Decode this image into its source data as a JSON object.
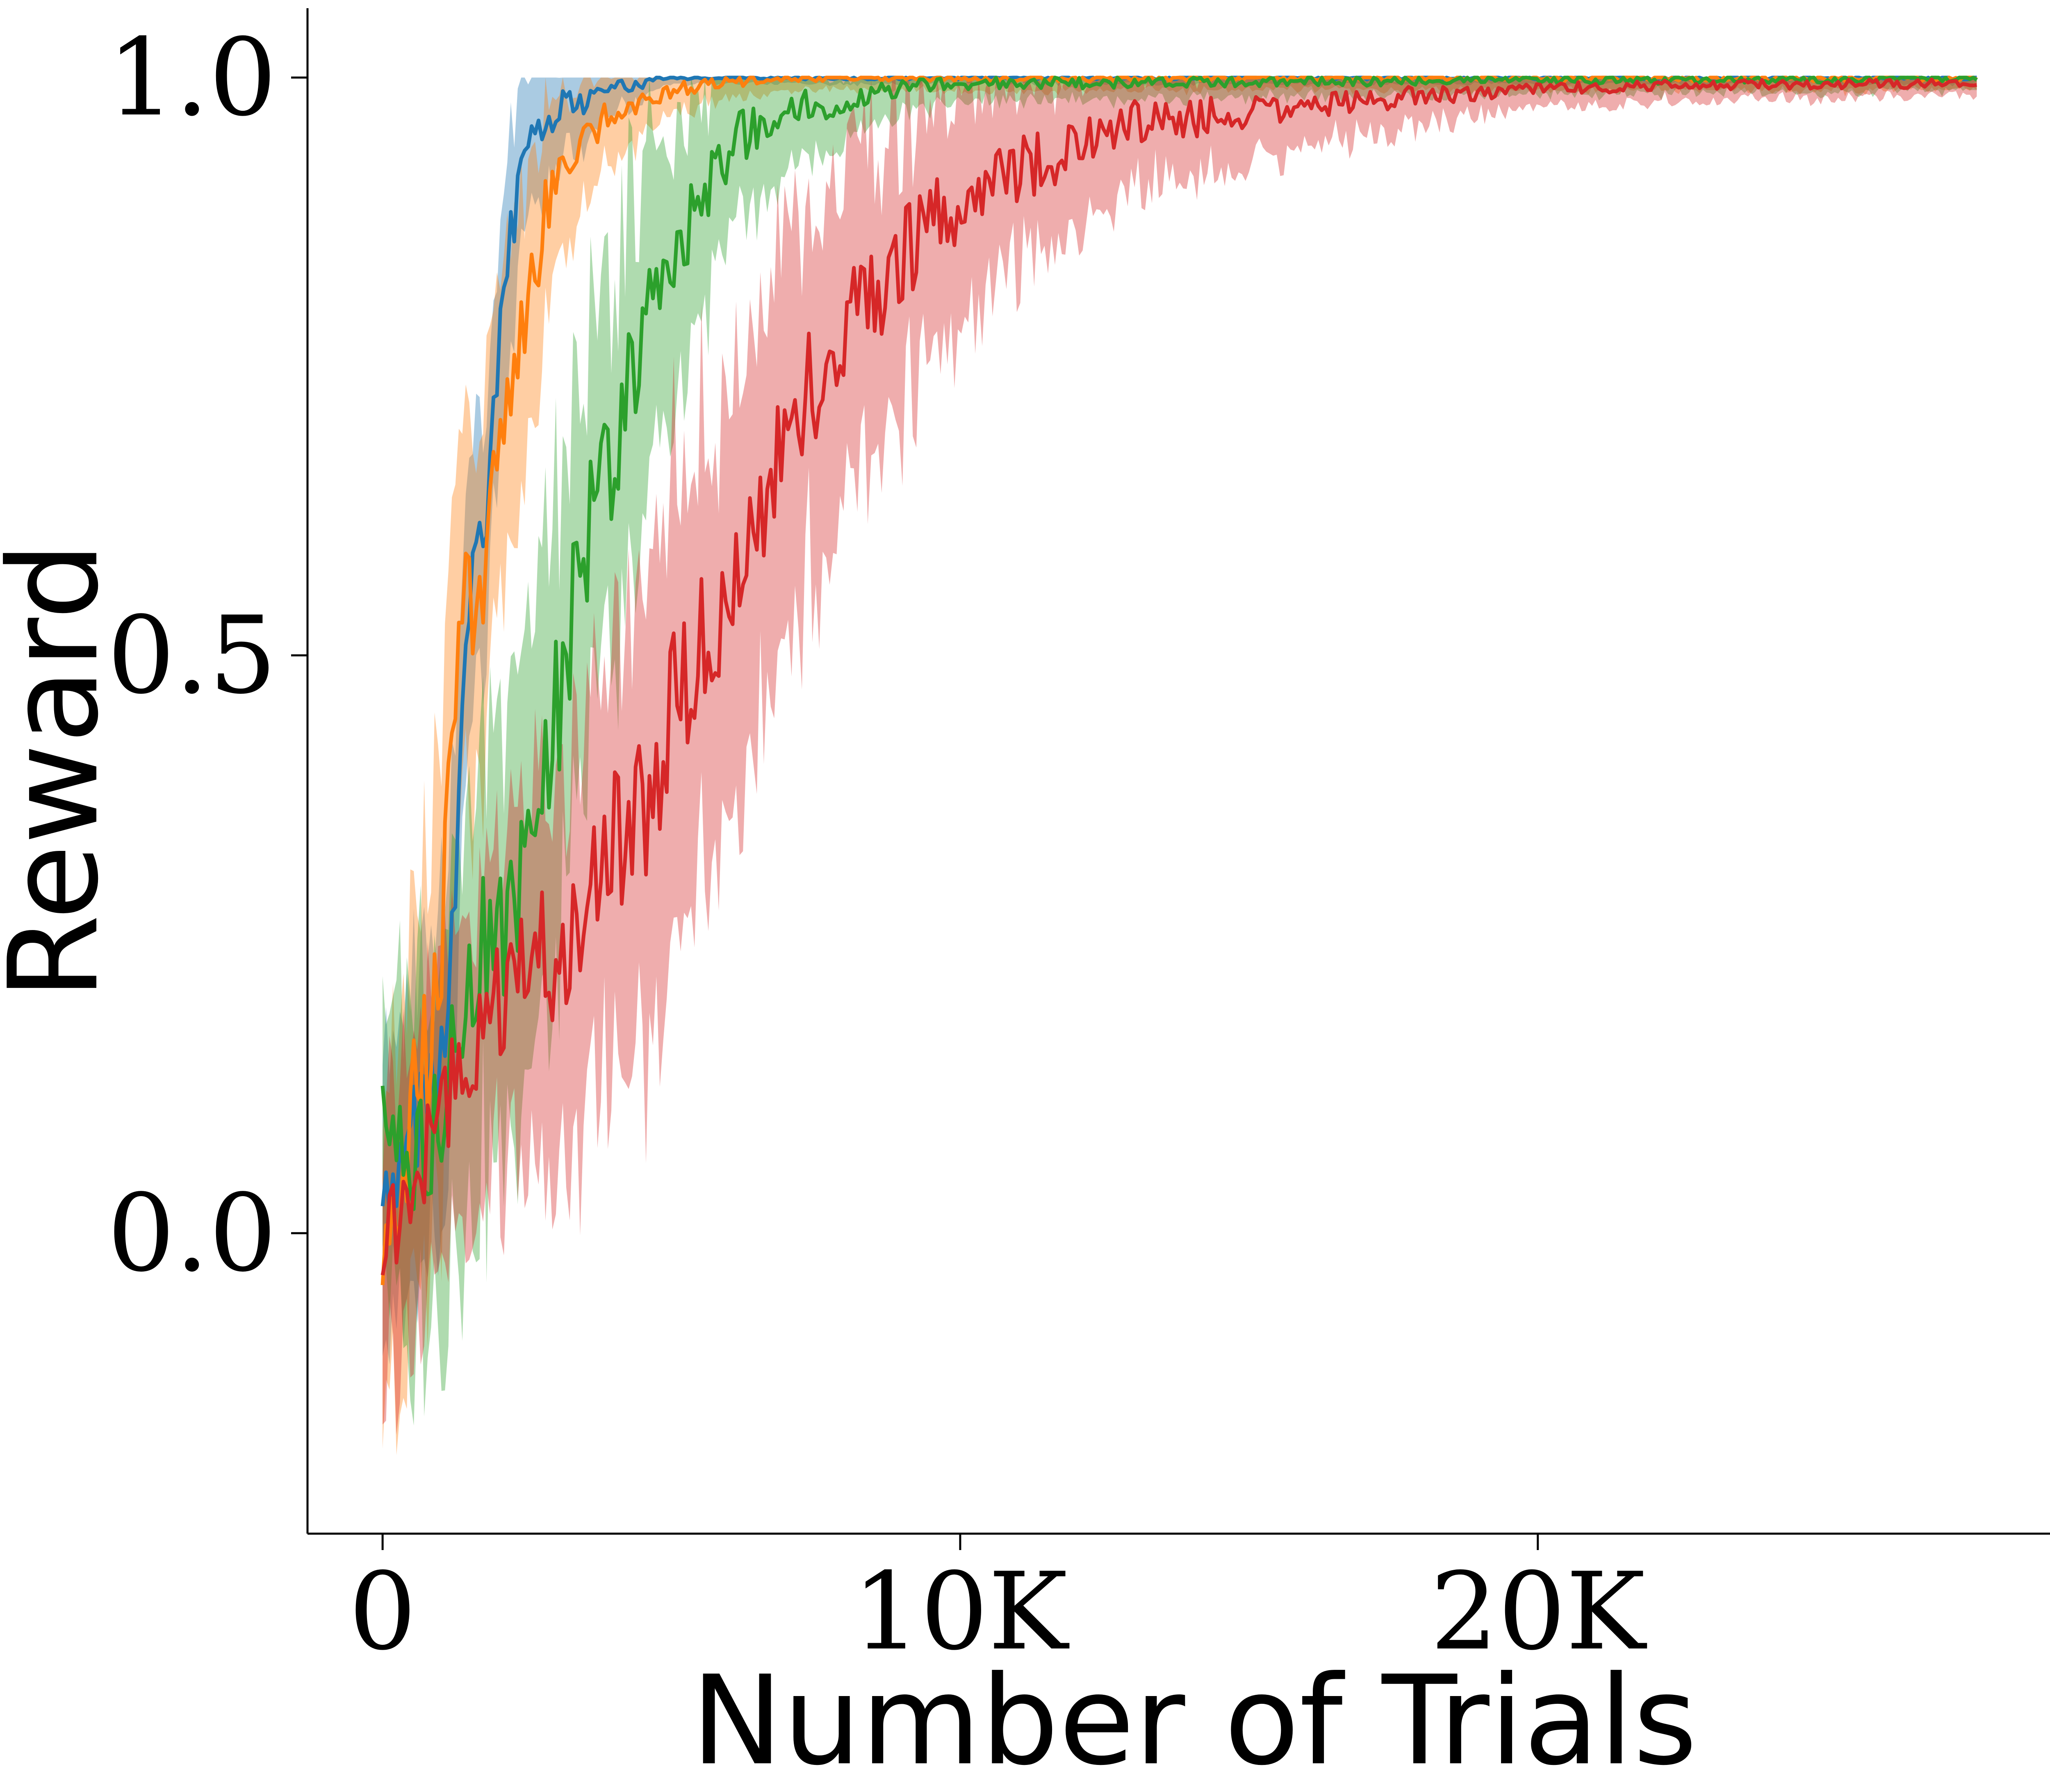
{
  "chart_data": {
    "type": "line",
    "title": "",
    "xlabel": "Number of Trials",
    "ylabel": "Reward",
    "xlim": [
      -1300,
      29400
    ],
    "ylim": [
      -0.26,
      1.06
    ],
    "x_ticks": [
      0,
      10000,
      20000
    ],
    "x_tick_labels": [
      "0",
      "10K",
      "20K"
    ],
    "y_ticks": [
      0.0,
      0.5,
      1.0
    ],
    "y_tick_labels": [
      "0.0",
      "0.5",
      "1.0"
    ],
    "grid": false,
    "legend": "none",
    "x_max": 27600,
    "series": [
      {
        "color": "#1f77b4",
        "fill_color": "#1f77b4",
        "mean_points": [
          [
            0,
            0.05
          ],
          [
            250,
            0.06
          ],
          [
            500,
            0.08
          ],
          [
            750,
            0.12
          ],
          [
            1000,
            0.14
          ],
          [
            1250,
            0.3
          ],
          [
            1500,
            0.55
          ],
          [
            1750,
            0.6
          ],
          [
            2000,
            0.75
          ],
          [
            2250,
            0.87
          ],
          [
            2500,
            0.94
          ],
          [
            2750,
            0.96
          ],
          [
            3000,
            0.97
          ],
          [
            3500,
            0.98
          ],
          [
            4000,
            0.99
          ],
          [
            4500,
            0.995
          ],
          [
            5000,
            1.0
          ],
          [
            27600,
            1.0
          ]
        ],
        "band_width_points": [
          [
            0,
            0.12
          ],
          [
            1000,
            0.14
          ],
          [
            2000,
            0.1
          ],
          [
            3000,
            0.05
          ],
          [
            4000,
            0.02
          ],
          [
            5000,
            0.005
          ],
          [
            27600,
            0.005
          ]
        ]
      },
      {
        "color": "#ff7f0e",
        "fill_color": "#ff7f0e",
        "mean_points": [
          [
            0,
            0.0
          ],
          [
            250,
            0.05
          ],
          [
            500,
            0.1
          ],
          [
            750,
            0.15
          ],
          [
            1000,
            0.25
          ],
          [
            1250,
            0.5
          ],
          [
            1500,
            0.54
          ],
          [
            1750,
            0.58
          ],
          [
            2000,
            0.7
          ],
          [
            2250,
            0.75
          ],
          [
            2500,
            0.78
          ],
          [
            2750,
            0.87
          ],
          [
            3000,
            0.9
          ],
          [
            3500,
            0.95
          ],
          [
            4000,
            0.97
          ],
          [
            5000,
            0.99
          ],
          [
            6000,
            0.995
          ],
          [
            7000,
            1.0
          ],
          [
            27600,
            1.0
          ]
        ],
        "band_width_points": [
          [
            0,
            0.15
          ],
          [
            1000,
            0.2
          ],
          [
            2000,
            0.15
          ],
          [
            3000,
            0.08
          ],
          [
            4000,
            0.04
          ],
          [
            5000,
            0.02
          ],
          [
            7000,
            0.01
          ],
          [
            27600,
            0.01
          ]
        ]
      },
      {
        "color": "#2ca02c",
        "fill_color": "#2ca02c",
        "mean_points": [
          [
            0,
            0.09
          ],
          [
            500,
            0.05
          ],
          [
            1000,
            0.1
          ],
          [
            1500,
            0.22
          ],
          [
            2000,
            0.27
          ],
          [
            2500,
            0.3
          ],
          [
            3000,
            0.45
          ],
          [
            3500,
            0.6
          ],
          [
            4000,
            0.68
          ],
          [
            4500,
            0.77
          ],
          [
            5000,
            0.84
          ],
          [
            5500,
            0.9
          ],
          [
            6000,
            0.94
          ],
          [
            7000,
            0.97
          ],
          [
            8000,
            0.98
          ],
          [
            9000,
            0.99
          ],
          [
            10000,
            0.995
          ],
          [
            27600,
            1.0
          ]
        ],
        "band_width_points": [
          [
            0,
            0.12
          ],
          [
            1500,
            0.2
          ],
          [
            3000,
            0.2
          ],
          [
            4500,
            0.15
          ],
          [
            6000,
            0.08
          ],
          [
            8000,
            0.03
          ],
          [
            10000,
            0.015
          ],
          [
            27600,
            0.01
          ]
        ]
      },
      {
        "color": "#d62728",
        "fill_color": "#d62728",
        "mean_points": [
          [
            0,
            0.0
          ],
          [
            500,
            0.02
          ],
          [
            1000,
            0.1
          ],
          [
            1500,
            0.15
          ],
          [
            2000,
            0.2
          ],
          [
            2500,
            0.25
          ],
          [
            3000,
            0.24
          ],
          [
            3500,
            0.28
          ],
          [
            4000,
            0.33
          ],
          [
            4500,
            0.36
          ],
          [
            5000,
            0.45
          ],
          [
            5500,
            0.5
          ],
          [
            6000,
            0.55
          ],
          [
            6500,
            0.63
          ],
          [
            7000,
            0.68
          ],
          [
            7500,
            0.74
          ],
          [
            8000,
            0.79
          ],
          [
            8500,
            0.81
          ],
          [
            9000,
            0.85
          ],
          [
            10000,
            0.89
          ],
          [
            11000,
            0.92
          ],
          [
            12000,
            0.94
          ],
          [
            13000,
            0.96
          ],
          [
            14000,
            0.965
          ],
          [
            15000,
            0.97
          ],
          [
            16000,
            0.975
          ],
          [
            17000,
            0.98
          ],
          [
            18000,
            0.985
          ],
          [
            20000,
            0.99
          ],
          [
            22000,
            0.993
          ],
          [
            27600,
            0.995
          ]
        ],
        "band_width_points": [
          [
            0,
            0.12
          ],
          [
            2000,
            0.15
          ],
          [
            4000,
            0.2
          ],
          [
            6000,
            0.2
          ],
          [
            8000,
            0.15
          ],
          [
            10000,
            0.1
          ],
          [
            12000,
            0.07
          ],
          [
            14000,
            0.05
          ],
          [
            17000,
            0.03
          ],
          [
            20000,
            0.015
          ],
          [
            27600,
            0.01
          ]
        ]
      }
    ]
  }
}
